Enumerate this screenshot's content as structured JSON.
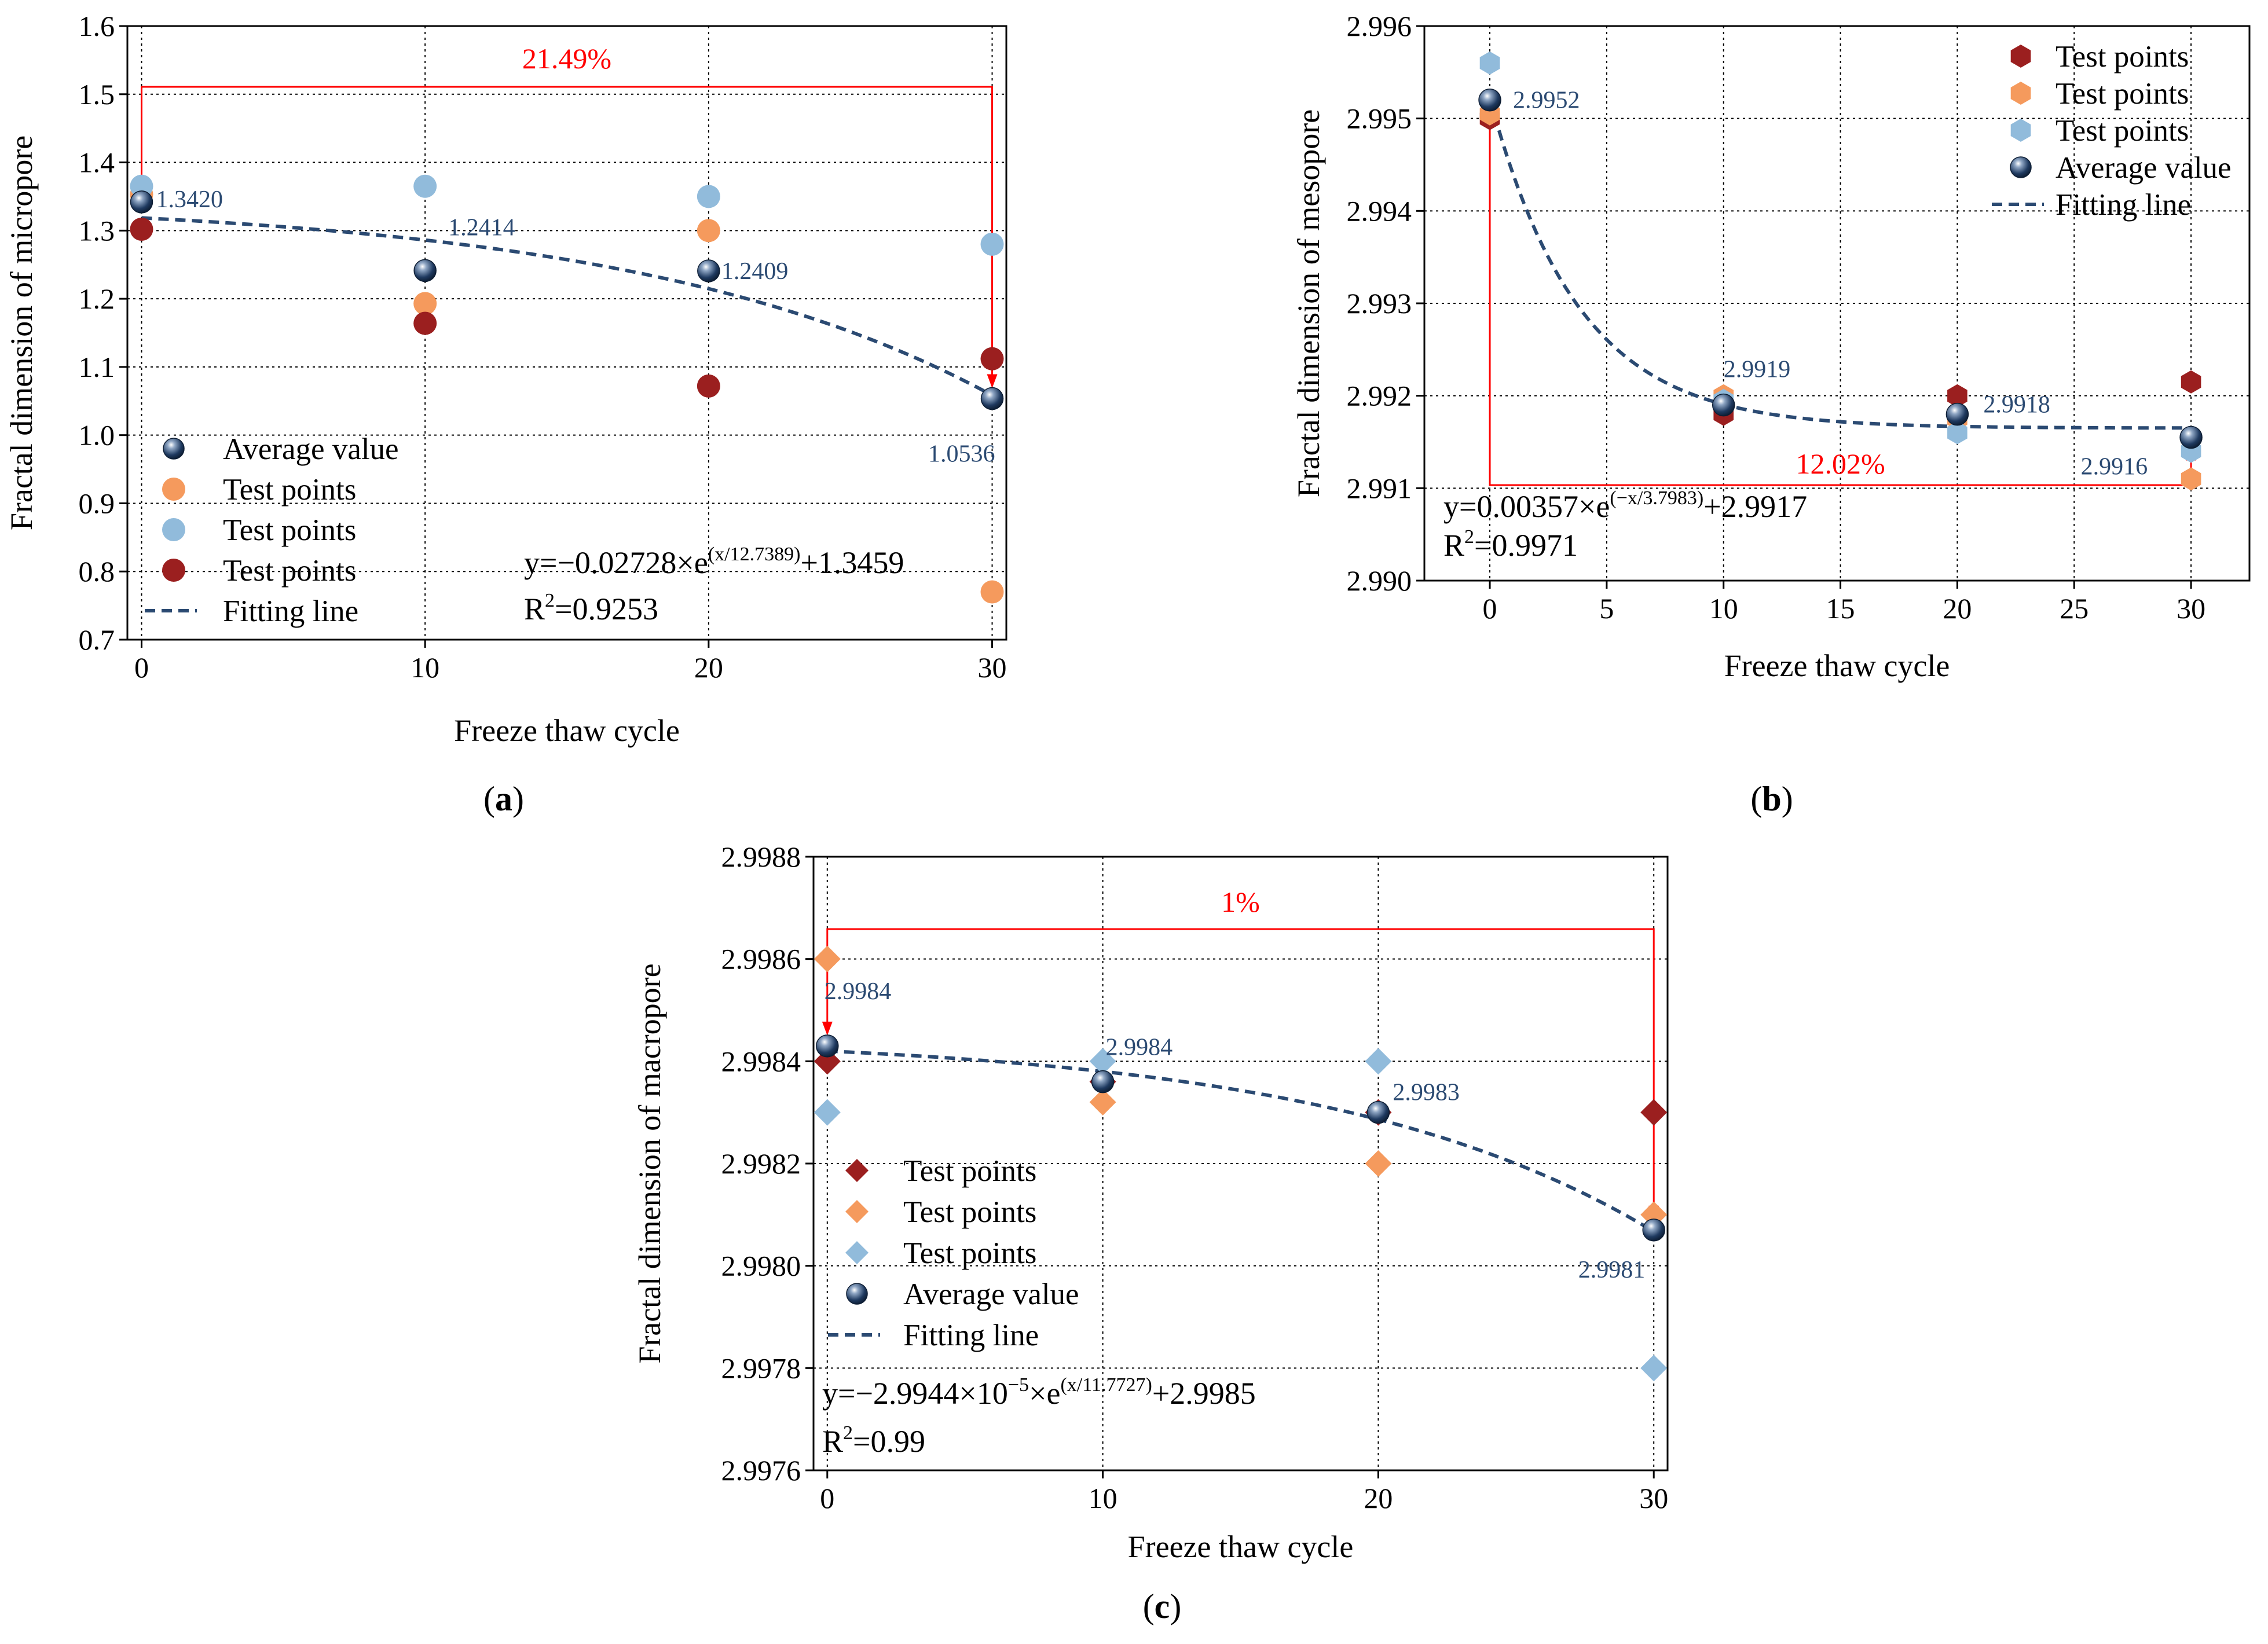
{
  "chart_data": [
    {
      "id": "a",
      "type": "scatter",
      "caption": "a",
      "xlabel": "Freeze thaw cycle",
      "ylabel": "Fractal dimension of micropore",
      "xlim": [
        -0.5,
        30.5
      ],
      "ylim": [
        0.7,
        1.6
      ],
      "xticks": [
        0,
        10,
        20,
        30
      ],
      "yticks": [
        0.7,
        0.8,
        0.9,
        1.0,
        1.1,
        1.2,
        1.3,
        1.4,
        1.5,
        1.6
      ],
      "ytick_labels": [
        "0.7",
        "0.8",
        "0.9",
        "1.0",
        "1.1",
        "1.2",
        "1.3",
        "1.4",
        "1.5",
        "1.6"
      ],
      "x": [
        0,
        10,
        20,
        30
      ],
      "series": [
        {
          "name": "Average value",
          "color": "#1f3a60",
          "marker": "sphere",
          "values": [
            1.342,
            1.2414,
            1.2409,
            1.0536
          ]
        },
        {
          "name": "Test points",
          "color": "#f59a5d",
          "marker": "circle",
          "values": [
            1.353,
            1.193,
            1.3,
            0.77
          ]
        },
        {
          "name": "Test points",
          "color": "#91bbdb",
          "marker": "circle",
          "values": [
            1.365,
            1.365,
            1.35,
            1.28
          ]
        },
        {
          "name": "Test points",
          "color": "#9b1f1f",
          "marker": "circle",
          "values": [
            1.302,
            1.164,
            1.072,
            1.112
          ]
        }
      ],
      "fit": {
        "name": "Fitting line",
        "a": -0.02728,
        "t": 12.7389,
        "c": 1.3459,
        "sign": 1,
        "color": "#2b4a72"
      },
      "point_labels": [
        "1.3420",
        "1.2414",
        "1.2409",
        "1.0536"
      ],
      "equation": {
        "pre": "y=−0.02728×e",
        "sup": "(x/12.7389)",
        "post": "+1.3459",
        "r2_pre": "R",
        "r2_sup": "2",
        "r2_post": "=0.9253"
      },
      "change_label": "21.49%",
      "legend_order": [
        0,
        1,
        2,
        3,
        "fit"
      ]
    },
    {
      "id": "b",
      "type": "scatter",
      "caption": "b",
      "xlabel": "Freeze thaw cycle",
      "ylabel": "Fractal dimension of mesopore",
      "xlim": [
        -2.8,
        32.5
      ],
      "ylim": [
        2.99,
        2.996
      ],
      "xticks": [
        0,
        5,
        10,
        15,
        20,
        25,
        30
      ],
      "yticks": [
        2.99,
        2.991,
        2.992,
        2.993,
        2.994,
        2.995,
        2.996
      ],
      "ytick_labels": [
        "2.990",
        "2.991",
        "2.992",
        "2.993",
        "2.994",
        "2.995",
        "2.996"
      ],
      "x": [
        0,
        10,
        20,
        30
      ],
      "series": [
        {
          "name": "Test points",
          "color": "#9b1f1f",
          "marker": "hexagon",
          "values": [
            2.995,
            2.9918,
            2.992,
            2.99215
          ]
        },
        {
          "name": "Test points",
          "color": "#f59a5d",
          "marker": "hexagon",
          "values": [
            2.99505,
            2.992,
            2.99175,
            2.9911
          ]
        },
        {
          "name": "Test points",
          "color": "#91bbdb",
          "marker": "hexagon",
          "values": [
            2.9956,
            2.99195,
            2.9916,
            2.9914
          ]
        },
        {
          "name": "Average value",
          "color": "#1f3a60",
          "marker": "sphere",
          "values": [
            2.9952,
            2.9919,
            2.9918,
            2.99155
          ]
        }
      ],
      "fit": {
        "name": "Fitting line",
        "a": 0.00357,
        "t": 3.7983,
        "c": 2.99165,
        "sign": -1,
        "color": "#2b4a72"
      },
      "point_labels": [
        "2.9952",
        "2.9919",
        "2.9918",
        "2.9916"
      ],
      "equation": {
        "pre": "y=0.00357×e",
        "sup": "(−x/3.7983)",
        "post": "+2.9917",
        "r2_pre": "R",
        "r2_sup": "2",
        "r2_post": "=0.9971"
      },
      "change_label": "12.02%",
      "legend_order": [
        0,
        1,
        2,
        3,
        "fit"
      ]
    },
    {
      "id": "c",
      "type": "scatter",
      "caption": "c",
      "xlabel": "Freeze thaw cycle",
      "ylabel": "Fractal dimension of macropore",
      "xlim": [
        -0.5,
        30.5
      ],
      "ylim": [
        2.9976,
        2.9988
      ],
      "xticks": [
        0,
        10,
        20,
        30
      ],
      "yticks": [
        2.9976,
        2.9978,
        2.998,
        2.9982,
        2.9984,
        2.9986,
        2.9988
      ],
      "ytick_labels": [
        "2.9976",
        "2.9978",
        "2.9980",
        "2.9982",
        "2.9984",
        "2.9986",
        "2.9988"
      ],
      "x": [
        0,
        10,
        20,
        30
      ],
      "series": [
        {
          "name": "Test points",
          "color": "#9b1f1f",
          "marker": "diamond",
          "values": [
            2.9984,
            2.99836,
            2.9983,
            2.9983
          ]
        },
        {
          "name": "Test points",
          "color": "#f59a5d",
          "marker": "diamond",
          "values": [
            2.9986,
            2.99832,
            2.9982,
            2.9981
          ]
        },
        {
          "name": "Test points",
          "color": "#91bbdb",
          "marker": "diamond",
          "values": [
            2.9983,
            2.9984,
            2.9984,
            2.9978
          ]
        },
        {
          "name": "Average value",
          "color": "#1f3a60",
          "marker": "sphere",
          "values": [
            2.99843,
            2.99836,
            2.9983,
            2.99807
          ]
        }
      ],
      "fit": {
        "name": "Fitting line",
        "a": -2.9944e-05,
        "t": 11.7727,
        "c": 2.99845,
        "sign": 1,
        "color": "#2b4a72"
      },
      "point_labels": [
        "2.9984",
        "2.9984",
        "2.9983",
        "2.9981"
      ],
      "equation": {
        "pre": "y=−2.9944×10",
        "exp": "−5",
        "mid": "×e",
        "sup": "(x/11.7727)",
        "post": "+2.9985",
        "r2_pre": "R",
        "r2_sup": "2",
        "r2_post": "=0.99"
      },
      "change_label": "1%",
      "legend_order": [
        0,
        1,
        2,
        3,
        "fit"
      ]
    }
  ]
}
